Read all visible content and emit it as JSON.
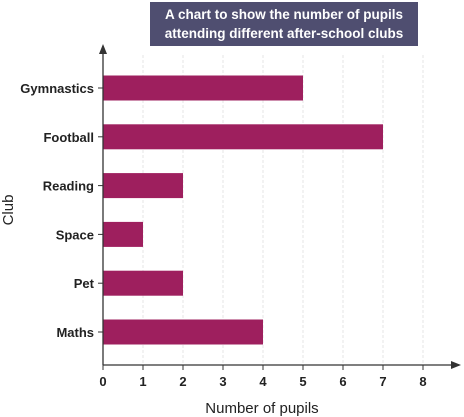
{
  "chart_data": {
    "type": "bar",
    "orientation": "horizontal",
    "title_lines": [
      "A chart to show the number of pupils",
      "attending different after-school clubs"
    ],
    "categories": [
      "Gymnastics",
      "Football",
      "Reading",
      "Space",
      "Pet",
      "Maths"
    ],
    "values": [
      5,
      7,
      2,
      1,
      2,
      4
    ],
    "xlabel": "Number of pupils",
    "ylabel": "Club",
    "xlim": [
      0,
      9
    ],
    "xticks": [
      0,
      1,
      2,
      3,
      4,
      5,
      6,
      7,
      8
    ],
    "grid": "vertical dashed",
    "bar_color": "#9e1f5e"
  }
}
